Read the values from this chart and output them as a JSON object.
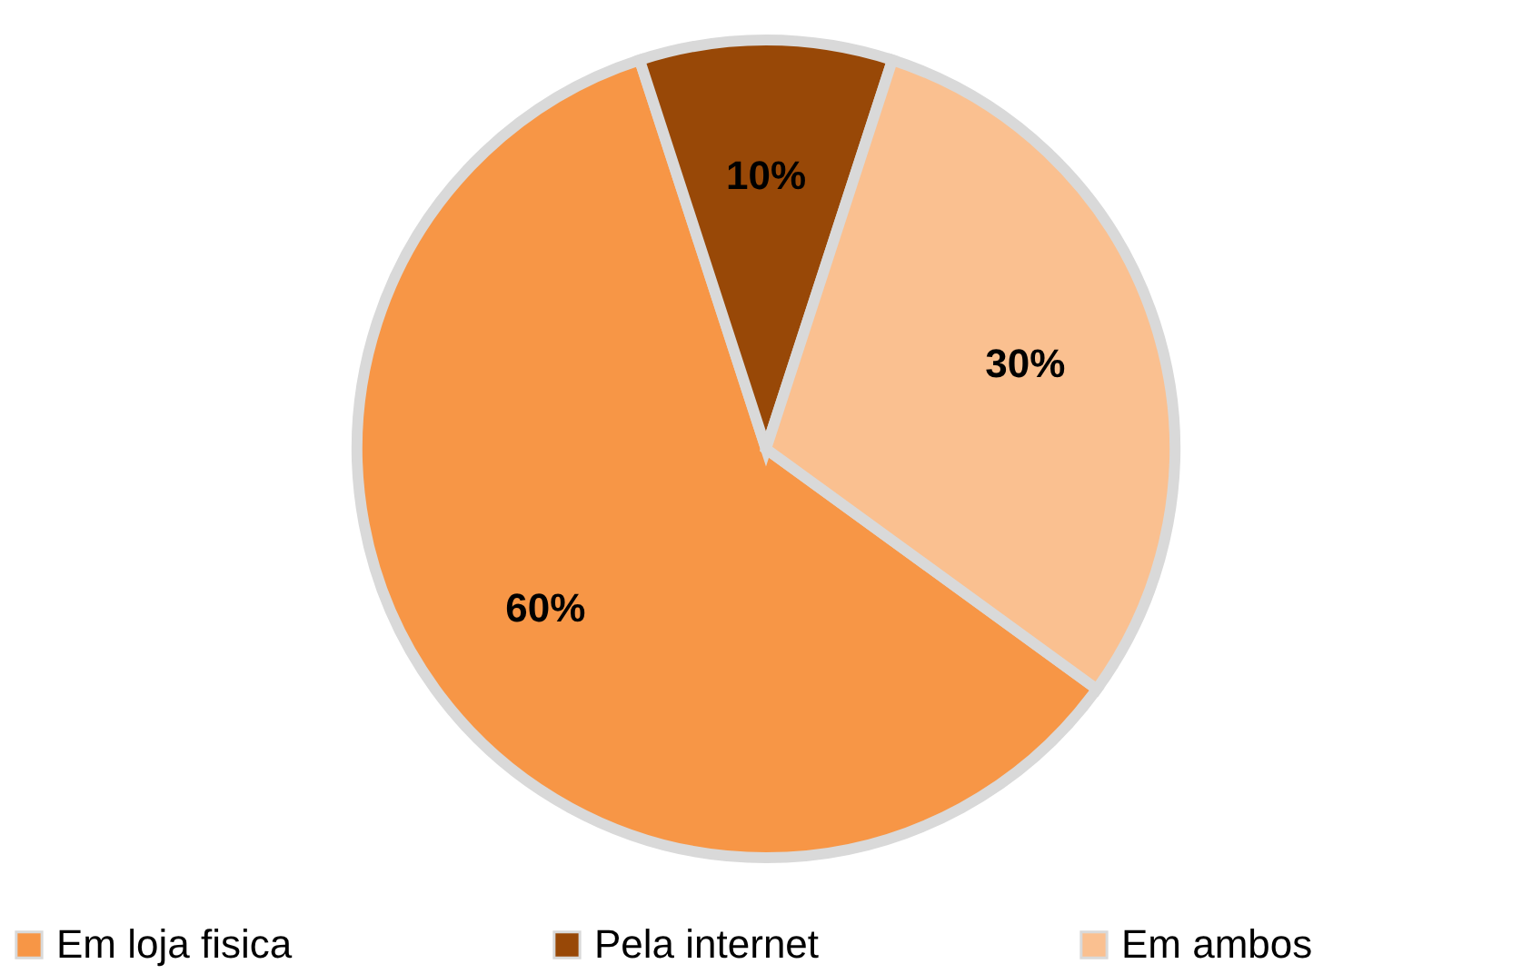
{
  "chart_data": {
    "type": "pie",
    "categories": [
      "Em loja fisica",
      "Pela internet",
      "Em ambos"
    ],
    "values": [
      60,
      10,
      30
    ],
    "colors": [
      "#f79646",
      "#984807",
      "#fac090"
    ],
    "value_labels": [
      "60%",
      "10%",
      "30%"
    ],
    "legend": "bottom"
  }
}
